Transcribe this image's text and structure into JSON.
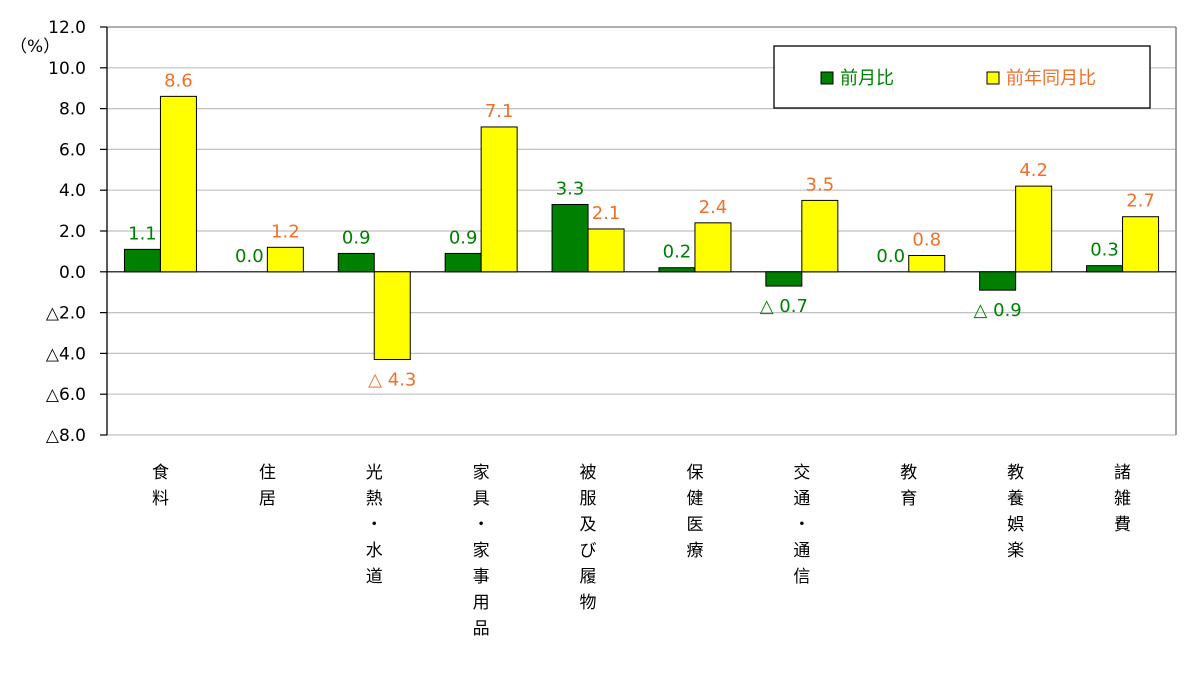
{
  "chart_data": {
    "type": "bar",
    "ylabel": "（%）",
    "ylim": [
      -8,
      12
    ],
    "yticks": [
      12,
      10,
      8,
      6,
      4,
      2,
      0,
      -2,
      -4,
      -6,
      -8
    ],
    "ytick_labels": [
      "12.0",
      "10.0",
      "8.0",
      "6.0",
      "4.0",
      "2.0",
      "0.0",
      "△2.0",
      "△4.0",
      "△6.0",
      "△8.0"
    ],
    "grid": true,
    "legend_position": "top-right",
    "categories": [
      "食料",
      "住居",
      "光熱・水道",
      "家具・家事用品",
      "被服及び履物",
      "保健医療",
      "交通・通信",
      "教育",
      "教養娯楽",
      "諸雑費"
    ],
    "series": [
      {
        "name": "前月比",
        "color": "#008000",
        "label_color": "#008000",
        "values": [
          1.1,
          0.0,
          0.9,
          0.9,
          3.3,
          0.2,
          -0.7,
          0.0,
          -0.9,
          0.3
        ],
        "labels": [
          "1.1",
          "0.0",
          "0.9",
          "0.9",
          "3.3",
          "0.2",
          "△ 0.7",
          "0.0",
          "△ 0.9",
          "0.3"
        ]
      },
      {
        "name": "前年同月比",
        "color": "#FFFF00",
        "label_color": "#F07028",
        "values": [
          8.6,
          1.2,
          -4.3,
          7.1,
          2.1,
          2.4,
          3.5,
          0.8,
          4.2,
          2.7
        ],
        "labels": [
          "8.6",
          "1.2",
          "△ 4.3",
          "7.1",
          "2.1",
          "2.4",
          "3.5",
          "0.8",
          "4.2",
          "2.7"
        ]
      }
    ]
  }
}
